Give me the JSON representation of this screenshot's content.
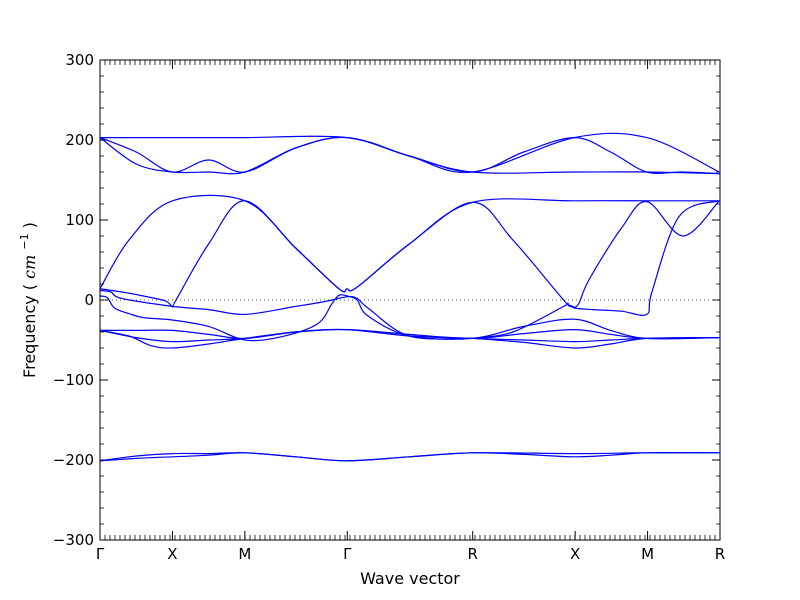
{
  "chart_data": {
    "type": "line",
    "title": "",
    "xlabel": "Wave vector",
    "ylabel": "Frequency",
    "ylabel_unit_italic": "cm",
    "ylabel_unit_exp": "−1",
    "ylim": [
      -300,
      300
    ],
    "y_ticks": [
      -300,
      -200,
      -100,
      0,
      100,
      200,
      300
    ],
    "y_tick_labels": [
      "−300",
      "−200",
      "−100",
      "0",
      "100",
      "200",
      "300"
    ],
    "x_segments": [
      {
        "from": "Γ",
        "to": "X",
        "length": 1.0
      },
      {
        "from": "X",
        "to": "M",
        "length": 1.0
      },
      {
        "from": "M",
        "to": "Γ",
        "length": 1.414
      },
      {
        "from": "Γ",
        "to": "R",
        "length": 1.732
      },
      {
        "from": "R",
        "to": "X",
        "length": 1.414
      },
      {
        "from": "X",
        "to": "M",
        "length": 1.0
      },
      {
        "from": "M",
        "to": "R",
        "length": 1.0
      }
    ],
    "high_symmetry_labels": [
      "Γ",
      "X",
      "M",
      "Γ",
      "R",
      "X",
      "M",
      "R"
    ],
    "zero_line": true,
    "series_color": "#0000ff",
    "bands": [
      [
        [
          0,
          203
        ],
        [
          0.5,
          203
        ],
        [
          1,
          203
        ],
        [
          1.5,
          203
        ],
        [
          2,
          203
        ],
        [
          3.41,
          203
        ],
        [
          4.27,
          180
        ],
        [
          5.14,
          160
        ],
        [
          6.55,
          203
        ],
        [
          7.55,
          203
        ],
        [
          8.55,
          160
        ]
      ],
      [
        [
          0,
          203
        ],
        [
          0.5,
          185
        ],
        [
          1,
          160
        ],
        [
          1.5,
          175
        ],
        [
          2,
          160
        ],
        [
          2.7,
          190
        ],
        [
          3.41,
          203
        ],
        [
          4.27,
          180
        ],
        [
          5.14,
          160
        ],
        [
          5.85,
          185
        ],
        [
          6.55,
          203
        ],
        [
          7.05,
          185
        ],
        [
          7.55,
          160
        ],
        [
          8.05,
          160
        ],
        [
          8.55,
          158
        ]
      ],
      [
        [
          0,
          203
        ],
        [
          0.5,
          170
        ],
        [
          1,
          160
        ],
        [
          1.5,
          160
        ],
        [
          2,
          160
        ],
        [
          2.7,
          190
        ],
        [
          3.41,
          203
        ],
        [
          4.27,
          180
        ],
        [
          5.14,
          160
        ],
        [
          6.55,
          160
        ],
        [
          7.55,
          160
        ],
        [
          8.55,
          158
        ]
      ],
      [
        [
          0,
          14
        ],
        [
          0.4,
          75
        ],
        [
          1,
          124
        ],
        [
          2,
          124
        ],
        [
          2.7,
          65
        ],
        [
          3.3,
          14
        ],
        [
          3.41,
          14
        ],
        [
          3.55,
          16
        ],
        [
          4.27,
          70
        ],
        [
          5.14,
          122
        ],
        [
          6.55,
          124
        ],
        [
          7.55,
          124
        ],
        [
          8.55,
          124
        ]
      ],
      [
        [
          0,
          14
        ],
        [
          0.3,
          10
        ],
        [
          0.6,
          5
        ],
        [
          0.9,
          -1
        ],
        [
          1,
          -8
        ],
        [
          1.05,
          0
        ],
        [
          1.5,
          70
        ],
        [
          2,
          124
        ],
        [
          2.7,
          65
        ],
        [
          3.3,
          14
        ],
        [
          3.41,
          14
        ],
        [
          3.55,
          16
        ],
        [
          4.27,
          70
        ],
        [
          5.14,
          122
        ],
        [
          5.7,
          75
        ],
        [
          6.4,
          0
        ],
        [
          6.5,
          -7
        ],
        [
          6.6,
          -6
        ],
        [
          6.75,
          25
        ],
        [
          7.2,
          90
        ],
        [
          7.55,
          123
        ],
        [
          8.05,
          80
        ],
        [
          8.55,
          124
        ]
      ],
      [
        [
          0,
          12
        ],
        [
          0.15,
          10
        ],
        [
          0.3,
          2
        ],
        [
          1,
          -8
        ],
        [
          1.5,
          -12
        ],
        [
          2,
          -18
        ],
        [
          2.7,
          -8
        ],
        [
          3.1,
          -2
        ],
        [
          3.41,
          4
        ],
        [
          3.55,
          2
        ],
        [
          3.7,
          -10
        ],
        [
          4.27,
          -45
        ],
        [
          5.14,
          -48
        ]
      ],
      [
        [
          5.14,
          -48
        ],
        [
          5.7,
          -40
        ],
        [
          6.4,
          -8
        ],
        [
          6.45,
          -5
        ],
        [
          6.55,
          -10
        ],
        [
          6.8,
          -12
        ],
        [
          7.2,
          -14
        ],
        [
          7.55,
          -18
        ],
        [
          7.62,
          10
        ],
        [
          8.0,
          105
        ],
        [
          8.55,
          124
        ]
      ],
      [
        [
          0,
          -38
        ],
        [
          0.5,
          -38
        ],
        [
          1,
          -38
        ],
        [
          1.5,
          -43
        ],
        [
          2,
          -48
        ],
        [
          2.7,
          -40
        ],
        [
          3.41,
          -37
        ],
        [
          4.27,
          -43
        ],
        [
          5.14,
          -48
        ],
        [
          5.85,
          -42
        ],
        [
          6.55,
          -37
        ],
        [
          7.05,
          -43
        ],
        [
          7.55,
          -48
        ],
        [
          8.55,
          -47
        ]
      ],
      [
        [
          0,
          -38
        ],
        [
          0.4,
          -45
        ],
        [
          0.7,
          -57
        ],
        [
          1,
          -60
        ],
        [
          1.5,
          -55
        ],
        [
          2,
          -48
        ],
        [
          2.7,
          -40
        ],
        [
          3.41,
          -37
        ],
        [
          4.27,
          -45
        ],
        [
          5.14,
          -48
        ],
        [
          5.85,
          -53
        ],
        [
          6.55,
          -60
        ],
        [
          7.05,
          -55
        ],
        [
          7.55,
          -48
        ],
        [
          8.55,
          -47
        ]
      ],
      [
        [
          0,
          -38
        ],
        [
          0.5,
          -47
        ],
        [
          1,
          -52
        ],
        [
          1.5,
          -50
        ],
        [
          2,
          -48
        ],
        [
          2.7,
          -40
        ],
        [
          3.41,
          -37
        ],
        [
          4.27,
          -45
        ],
        [
          5.14,
          -48
        ],
        [
          5.85,
          -50
        ],
        [
          6.55,
          -52
        ],
        [
          7.05,
          -50
        ],
        [
          7.55,
          -48
        ],
        [
          8.55,
          -47
        ]
      ],
      [
        [
          0,
          5
        ],
        [
          0.1,
          3
        ],
        [
          0.2,
          -10
        ],
        [
          0.4,
          -17
        ],
        [
          0.6,
          -22
        ],
        [
          1,
          -25
        ],
        [
          1.5,
          -33
        ],
        [
          2,
          -50
        ],
        [
          2.5,
          -46
        ],
        [
          3.0,
          -30
        ],
        [
          3.2,
          -5
        ],
        [
          3.3,
          6
        ],
        [
          3.41,
          5
        ],
        [
          3.55,
          0
        ],
        [
          3.7,
          -20
        ],
        [
          4.27,
          -45
        ],
        [
          5.14,
          -48
        ],
        [
          5.85,
          -33
        ],
        [
          6.55,
          -24
        ],
        [
          7.05,
          -38
        ],
        [
          7.55,
          -48
        ],
        [
          8.55,
          -47
        ]
      ],
      [
        [
          0,
          -201
        ],
        [
          0.5,
          -198
        ],
        [
          1,
          -196
        ],
        [
          1.5,
          -194
        ],
        [
          2,
          -191
        ],
        [
          2.7,
          -196
        ],
        [
          3.41,
          -201
        ],
        [
          4.27,
          -196
        ],
        [
          5.14,
          -191
        ],
        [
          5.85,
          -193
        ],
        [
          6.55,
          -196
        ],
        [
          7.05,
          -194
        ],
        [
          7.55,
          -191
        ],
        [
          8.55,
          -191
        ]
      ],
      [
        [
          0,
          -201
        ],
        [
          0.5,
          -195
        ],
        [
          1,
          -192
        ],
        [
          1.5,
          -192
        ],
        [
          2,
          -191
        ],
        [
          2.7,
          -196
        ],
        [
          3.41,
          -201
        ],
        [
          4.27,
          -196
        ],
        [
          5.14,
          -191
        ],
        [
          6.55,
          -192
        ],
        [
          7.55,
          -191
        ],
        [
          8.55,
          -191
        ]
      ]
    ]
  }
}
